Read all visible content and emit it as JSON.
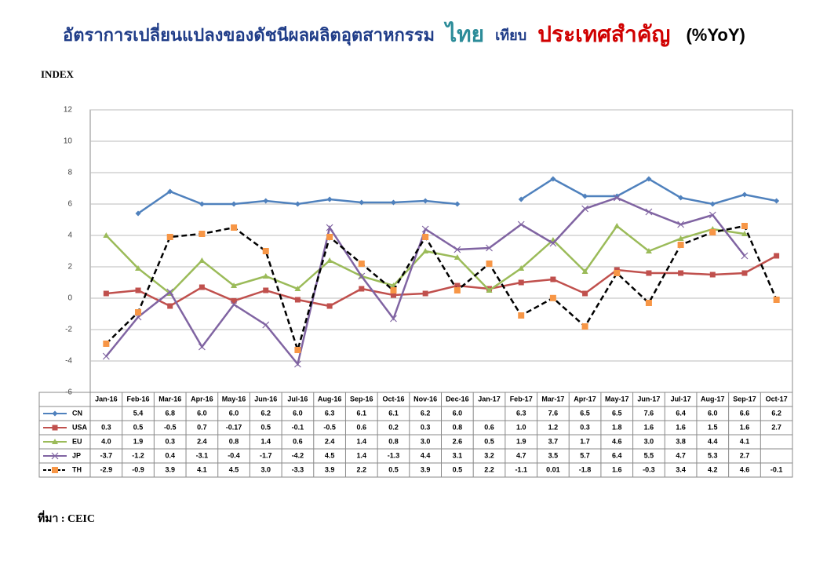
{
  "chart_data": {
    "type": "line",
    "title": {
      "main": "อัตราการเปลี่ยนแปลงของดัชนีผลผลิตอุตสาหกรรม",
      "main_color": "#1f3c88",
      "highlight": "ไทย",
      "highlight_color": "#2c8c99",
      "middle": "เทียบ",
      "middle_color": "#1f3c88",
      "emphasis": "ประเทศสำคัญ",
      "emphasis_color": "#d00000",
      "suffix": "(%YoY)",
      "suffix_color": "#000000"
    },
    "y_label": "INDEX",
    "source": "ที่มา : CEIC",
    "categories": [
      "Jan-16",
      "Feb-16",
      "Mar-16",
      "Apr-16",
      "May-16",
      "Jun-16",
      "Jul-16",
      "Aug-16",
      "Sep-16",
      "Oct-16",
      "Nov-16",
      "Dec-16",
      "Jan-17",
      "Feb-17",
      "Mar-17",
      "Apr-17",
      "May-17",
      "Jun-17",
      "Jul-17",
      "Aug-17",
      "Sep-17",
      "Oct-17"
    ],
    "ylim": [
      -6,
      12
    ],
    "yticks": [
      -6,
      -4,
      -2,
      0,
      2,
      4,
      6,
      8,
      10,
      12
    ],
    "grid": true,
    "series": [
      {
        "name": "CN",
        "color": "#4f81bd",
        "marker": "diamond",
        "values": [
          null,
          5.4,
          6.8,
          6.0,
          6.0,
          6.2,
          6.0,
          6.3,
          6.1,
          6.1,
          6.2,
          6.0,
          null,
          6.3,
          7.6,
          6.5,
          6.5,
          7.6,
          6.4,
          6.0,
          6.6,
          6.2
        ],
        "value_labels": [
          null,
          "5.4",
          "6.8",
          "6.0",
          "6.0",
          "6.2",
          "6.0",
          "6.3",
          "6.1",
          "6.1",
          "6.2",
          "6.0",
          null,
          "6.3",
          "7.6",
          "6.5",
          "6.5",
          "7.6",
          "6.4",
          "6.0",
          "6.6",
          "6.2"
        ]
      },
      {
        "name": "USA",
        "color": "#c0504d",
        "marker": "square",
        "values": [
          0.3,
          0.5,
          -0.5,
          0.7,
          -0.17,
          0.5,
          -0.1,
          -0.5,
          0.6,
          0.2,
          0.3,
          0.8,
          0.6,
          1.0,
          1.2,
          0.3,
          1.8,
          1.6,
          1.6,
          1.5,
          1.6,
          2.7
        ],
        "value_labels": [
          "0.3",
          "0.5",
          "-0.5",
          "0.7",
          "-0.17",
          "0.5",
          "-0.1",
          "-0.5",
          "0.6",
          "0.2",
          "0.3",
          "0.8",
          "0.6",
          "1.0",
          "1.2",
          "0.3",
          "1.8",
          "1.6",
          "1.6",
          "1.5",
          "1.6",
          "2.7"
        ]
      },
      {
        "name": "EU",
        "color": "#9bbb59",
        "marker": "triangle",
        "values": [
          4.0,
          1.9,
          0.3,
          2.4,
          0.8,
          1.4,
          0.6,
          2.4,
          1.4,
          0.8,
          3.0,
          2.6,
          0.5,
          1.9,
          3.7,
          1.7,
          4.6,
          3.0,
          3.8,
          4.4,
          4.1,
          null
        ],
        "value_labels": [
          "4.0",
          "1.9",
          "0.3",
          "2.4",
          "0.8",
          "1.4",
          "0.6",
          "2.4",
          "1.4",
          "0.8",
          "3.0",
          "2.6",
          "0.5",
          "1.9",
          "3.7",
          "1.7",
          "4.6",
          "3.0",
          "3.8",
          "4.4",
          "4.1",
          null
        ]
      },
      {
        "name": "JP",
        "color": "#8064a2",
        "marker": "x",
        "values": [
          -3.7,
          -1.2,
          0.4,
          -3.1,
          -0.4,
          -1.7,
          -4.2,
          4.5,
          1.4,
          -1.3,
          4.4,
          3.1,
          3.2,
          4.7,
          3.5,
          5.7,
          6.4,
          5.5,
          4.7,
          5.3,
          2.7,
          null
        ],
        "value_labels": [
          "-3.7",
          "-1.2",
          "0.4",
          "-3.1",
          "-0.4",
          "-1.7",
          "-4.2",
          "4.5",
          "1.4",
          "-1.3",
          "4.4",
          "3.1",
          "3.2",
          "4.7",
          "3.5",
          "5.7",
          "6.4",
          "5.5",
          "4.7",
          "5.3",
          "2.7",
          null
        ]
      },
      {
        "name": "TH",
        "color": "#000000",
        "marker": "star",
        "marker_color": "#f79646",
        "dashed": true,
        "values": [
          -2.9,
          -0.9,
          3.9,
          4.1,
          4.5,
          3.0,
          -3.3,
          3.9,
          2.2,
          0.5,
          3.9,
          0.5,
          2.2,
          -1.1,
          0.01,
          -1.8,
          1.6,
          -0.3,
          3.4,
          4.2,
          4.6,
          -0.1
        ],
        "value_labels": [
          "-2.9",
          "-0.9",
          "3.9",
          "4.1",
          "4.5",
          "3.0",
          "-3.3",
          "3.9",
          "2.2",
          "0.5",
          "3.9",
          "0.5",
          "2.2",
          "-1.1",
          "0.01",
          "-1.8",
          "1.6",
          "-0.3",
          "3.4",
          "4.2",
          "4.6",
          "-0.1"
        ]
      }
    ]
  }
}
